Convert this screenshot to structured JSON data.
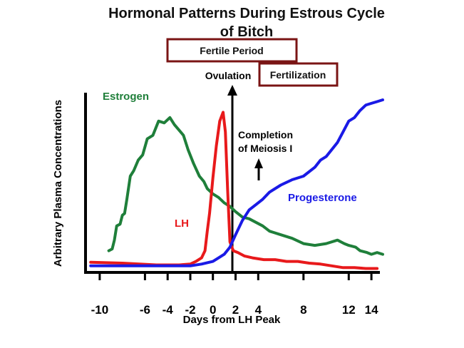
{
  "chart_data": {
    "type": "line",
    "title_line1": "Hormonal Patterns During Estrous Cycle",
    "title_line2": "of Bitch",
    "xlabel": "Days from LH Peak",
    "ylabel": "Arbitrary Plasma Concentrations",
    "xlim": [
      -11,
      15
    ],
    "ylim": [
      0,
      100
    ],
    "x_ticks": [
      -10,
      -6,
      -4,
      -2,
      0,
      2,
      4,
      8,
      12,
      14
    ],
    "grid": false,
    "annotations": {
      "fertile_period": "Fertile Period",
      "ovulation": "Ovulation",
      "fertilization": "Fertilization",
      "meiosis_line1": "Completion",
      "meiosis_line2": "of Meiosis I"
    },
    "series": [
      {
        "name": "Estrogen",
        "color": "#1f7f3a",
        "x": [
          -9.2,
          -8.9,
          -8.7,
          -8.5,
          -8.2,
          -8.0,
          -7.8,
          -7.6,
          -7.3,
          -7.0,
          -6.6,
          -6.2,
          -5.8,
          -5.3,
          -4.8,
          -4.3,
          -3.8,
          -3.4,
          -3.0,
          -2.6,
          -2.2,
          -1.7,
          -1.2,
          -0.8,
          -0.5,
          0.0,
          0.5,
          1.0,
          1.5,
          2.0,
          2.6,
          3.2,
          3.8,
          4.4,
          5.0,
          6.0,
          7.0,
          8.0,
          9.0,
          10.0,
          11.0,
          11.6,
          12.0,
          12.6,
          13.0,
          13.6,
          14.0,
          14.5,
          15.0
        ],
        "y": [
          11,
          12,
          17,
          25,
          26,
          31,
          32,
          40,
          53,
          56,
          62,
          65,
          74,
          76,
          84,
          83,
          86,
          82,
          79,
          76,
          68,
          60,
          53,
          50,
          46,
          43,
          41,
          38,
          36,
          33,
          30,
          29,
          27,
          25,
          22,
          20,
          18,
          15,
          14,
          15,
          17,
          15,
          14,
          13,
          11,
          10,
          9,
          10,
          9
        ]
      },
      {
        "name": "LH",
        "color": "#e8191b",
        "x": [
          -10.8,
          -8,
          -5,
          -3,
          -2,
          -1.5,
          -1.0,
          -0.7,
          -0.5,
          -0.3,
          0,
          0.3,
          0.6,
          0.9,
          1.1,
          1.3,
          1.5,
          1.8,
          2.2,
          2.8,
          3.5,
          4.5,
          5.5,
          6.5,
          7.5,
          8.5,
          9.5,
          10.5,
          11.5,
          12.5,
          13.5,
          14.5
        ],
        "y": [
          4.5,
          4,
          3,
          3,
          3.5,
          5,
          7,
          11,
          22,
          32,
          52,
          70,
          84,
          89,
          78,
          45,
          16,
          11,
          10,
          8,
          7,
          6,
          6,
          5,
          5,
          4,
          3.5,
          2.5,
          1.5,
          1.5,
          1,
          1
        ]
      },
      {
        "name": "Progesterone",
        "color": "#1a1ae6",
        "x": [
          -10.8,
          -8,
          -6,
          -4,
          -2,
          -1.0,
          0,
          0.5,
          1.0,
          1.5,
          2.0,
          2.6,
          3.2,
          3.8,
          4.4,
          5.0,
          6.0,
          7.0,
          8.0,
          9.0,
          9.5,
          10.0,
          10.5,
          11.0,
          11.5,
          12.0,
          12.5,
          13.0,
          13.5,
          14.0,
          14.5,
          15.0
        ],
        "y": [
          2.5,
          2.5,
          2.5,
          2.5,
          2.5,
          3.5,
          5,
          7,
          9,
          13,
          20,
          28,
          34,
          37,
          40,
          44,
          48,
          51,
          53,
          58,
          62,
          64,
          68,
          72,
          78,
          84,
          86,
          90,
          93,
          94,
          95,
          96
        ]
      }
    ]
  }
}
